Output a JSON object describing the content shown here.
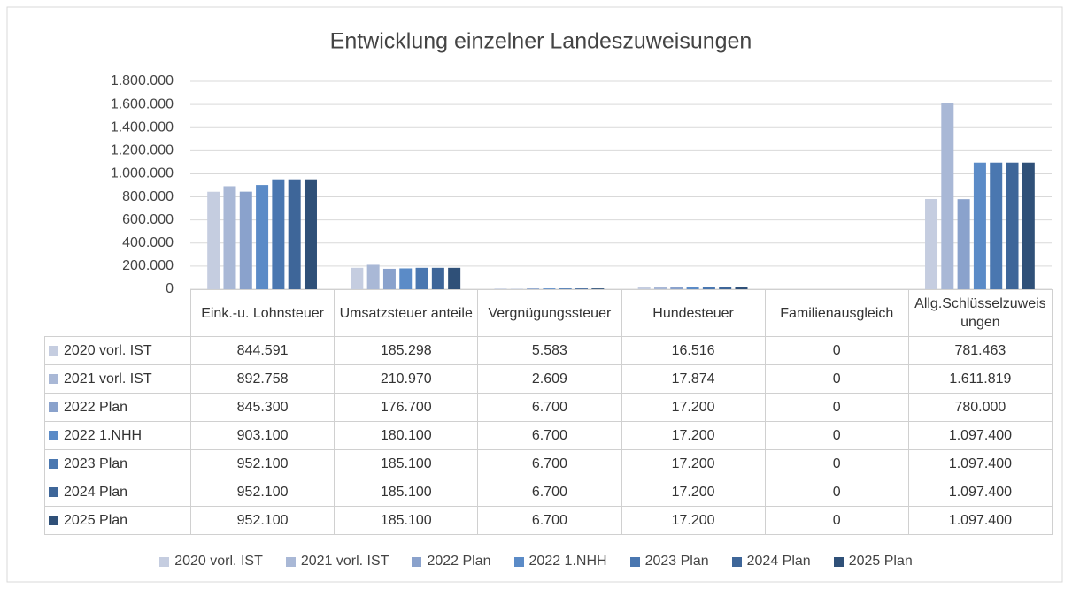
{
  "chart_data": {
    "type": "bar",
    "title": "Entwicklung einzelner Landeszuweisungen",
    "categories": [
      "Eink.-u. Lohnsteuer",
      "Umsatzsteuer anteile",
      "Vergnügungssteuer",
      "Hundesteuer",
      "Familienausgleich",
      "Allg.Schlüsselzuweisungen"
    ],
    "series": [
      {
        "name": "2020 vorl. IST",
        "color": "#c5cde0",
        "values": [
          844591,
          185298,
          5583,
          16516,
          0,
          781463
        ],
        "value_labels": [
          "844.591",
          "185.298",
          "5.583",
          "16.516",
          "0",
          "781.463"
        ]
      },
      {
        "name": "2021 vorl. IST",
        "color": "#a9b8d6",
        "values": [
          892758,
          210970,
          2609,
          17874,
          0,
          1611819
        ],
        "value_labels": [
          "892.758",
          "210.970",
          "2.609",
          "17.874",
          "0",
          "1.611.819"
        ]
      },
      {
        "name": "2022 Plan",
        "color": "#8aa2cc",
        "values": [
          845300,
          176700,
          6700,
          17200,
          0,
          780000
        ],
        "value_labels": [
          "845.300",
          "176.700",
          "6.700",
          "17.200",
          "0",
          "780.000"
        ]
      },
      {
        "name": "2022 1.NHH",
        "color": "#5b8bc7",
        "values": [
          903100,
          180100,
          6700,
          17200,
          0,
          1097400
        ],
        "value_labels": [
          "903.100",
          "180.100",
          "6.700",
          "17.200",
          "0",
          "1.097.400"
        ]
      },
      {
        "name": "2023 Plan",
        "color": "#4a77b0",
        "values": [
          952100,
          185100,
          6700,
          17200,
          0,
          1097400
        ],
        "value_labels": [
          "952.100",
          "185.100",
          "6.700",
          "17.200",
          "0",
          "1.097.400"
        ]
      },
      {
        "name": "2024 Plan",
        "color": "#3e6699",
        "values": [
          952100,
          185100,
          6700,
          17200,
          0,
          1097400
        ],
        "value_labels": [
          "952.100",
          "185.100",
          "6.700",
          "17.200",
          "0",
          "1.097.400"
        ]
      },
      {
        "name": "2025 Plan",
        "color": "#2f5078",
        "values": [
          952100,
          185100,
          6700,
          17200,
          0,
          1097400
        ],
        "value_labels": [
          "952.100",
          "185.100",
          "6.700",
          "17.200",
          "0",
          "1.097.400"
        ]
      }
    ],
    "ylim": [
      0,
      1800000
    ],
    "yticks": [
      0,
      {
        "value": 200000,
        "label": "200.000"
      },
      {
        "value": 400000,
        "label": "400.000"
      },
      {
        "value": 600000,
        "label": "600.000"
      },
      {
        "value": 800000,
        "label": "800.000"
      },
      {
        "value": 1000000,
        "label": "1.000.000"
      },
      {
        "value": 1200000,
        "label": "1.200.000"
      },
      {
        "value": 1400000,
        "label": "1.400.000"
      },
      {
        "value": 1600000,
        "label": "1.600.000"
      },
      {
        "value": 1800000,
        "label": "1.800.000"
      }
    ],
    "grid": true,
    "legend": "bottom"
  }
}
